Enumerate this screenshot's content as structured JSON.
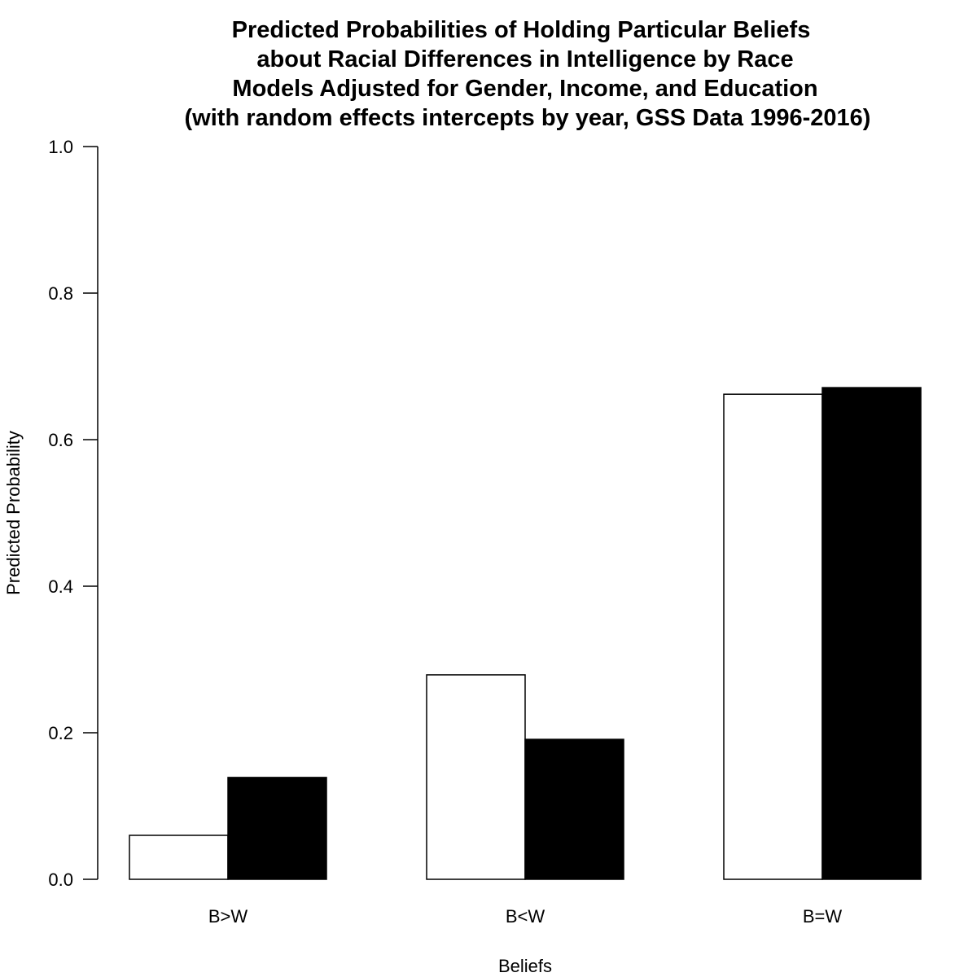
{
  "chart_data": {
    "type": "bar",
    "title_lines": [
      "Predicted Probabilities of Holding Particular Beliefs",
      "about Racial Differences in Intelligence by Race",
      "Models Adjusted for Gender, Income, and Education",
      "(with random effects intercepts by year, GSS Data 1996-2016)"
    ],
    "xlabel": "Beliefs",
    "ylabel": "Predicted Probability",
    "categories": [
      "B>W",
      "B<W",
      "B=W"
    ],
    "series": [
      {
        "values": [
          0.06,
          0.279,
          0.662
        ],
        "color": "#ffffff"
      },
      {
        "values": [
          0.139,
          0.191,
          0.671
        ],
        "color": "#000000"
      }
    ],
    "ylim": [
      0,
      1
    ],
    "yticks": [
      0,
      0.2,
      0.4,
      0.6,
      0.8,
      1.0
    ],
    "ytick_labels": [
      "0.0",
      "0.2",
      "0.4",
      "0.6",
      "0.8",
      "1.0"
    ],
    "grid": false,
    "legend": "none",
    "bar_edge_color": "#000000"
  }
}
